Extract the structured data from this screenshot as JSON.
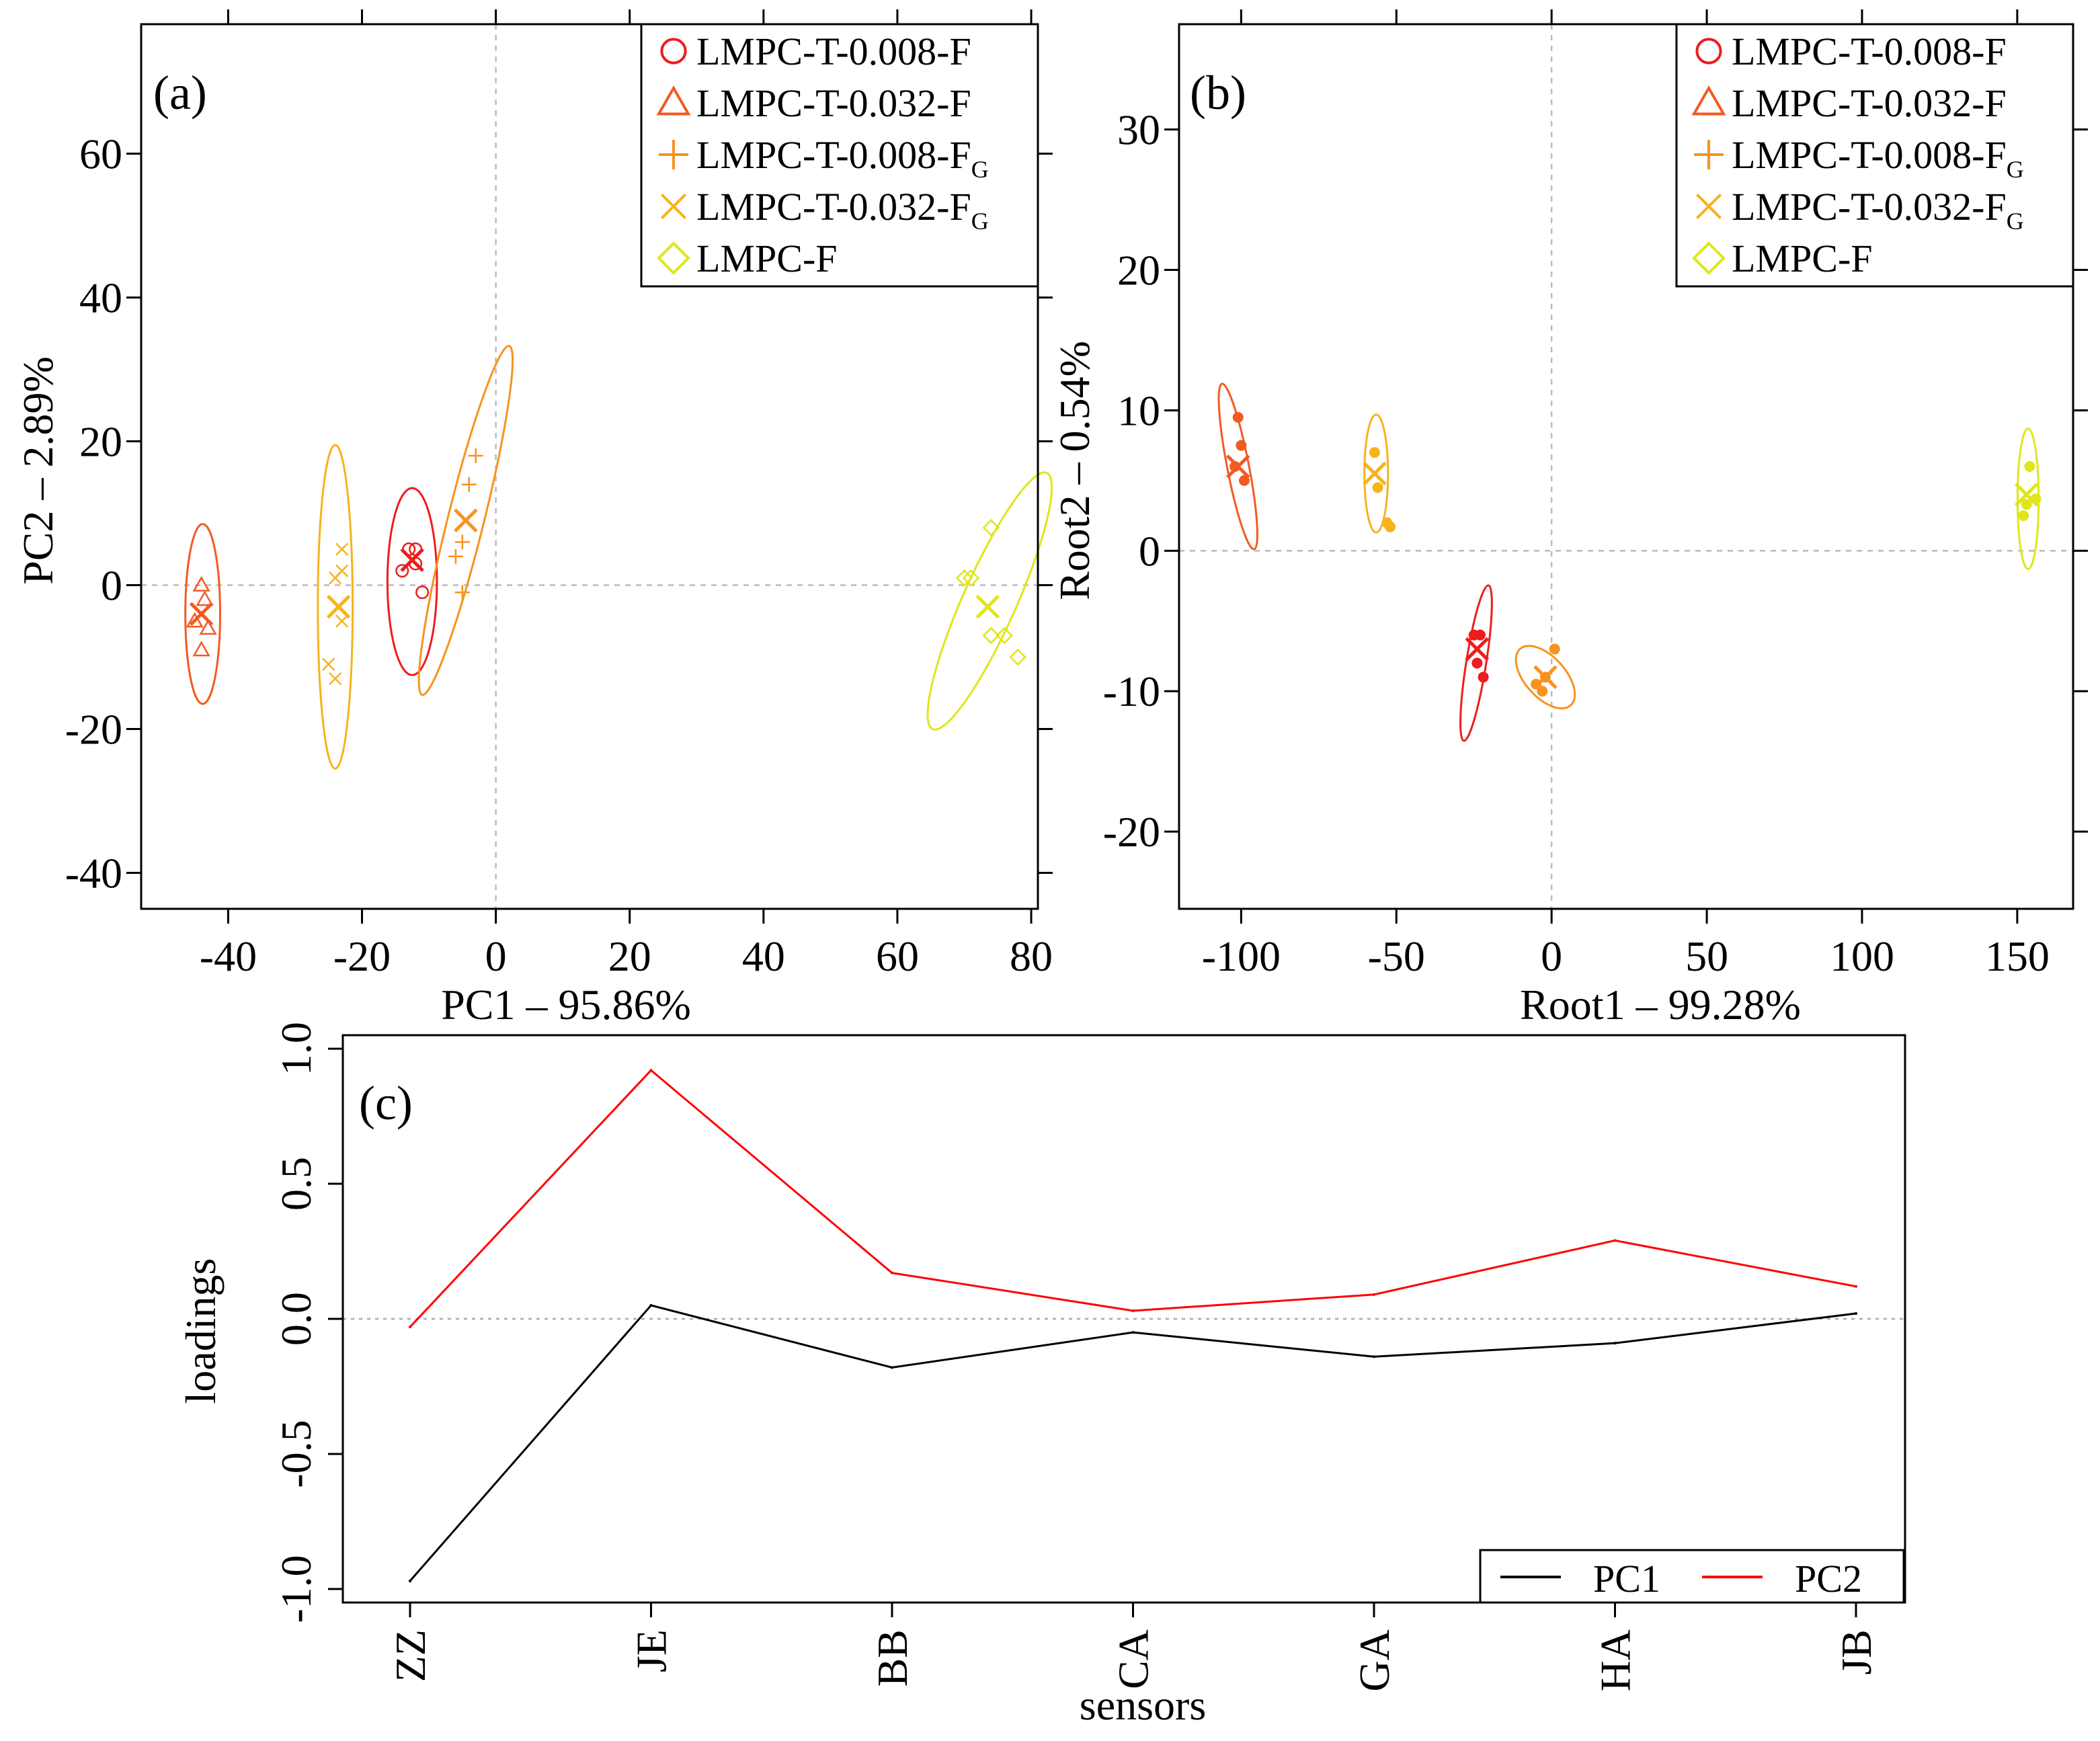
{
  "chart_data": [
    {
      "id": "a",
      "panel_label": "(a)",
      "type": "scatter",
      "xlabel": "PC1 – 95.86%",
      "ylabel": "PC2 – 2.89%",
      "xlim": [
        -53,
        81
      ],
      "ylim": [
        -45,
        78
      ],
      "xticks": [
        -40,
        -20,
        0,
        20,
        40,
        60,
        80
      ],
      "yticks": [
        -40,
        -20,
        0,
        20,
        40,
        60
      ],
      "xtick_labels": [
        "-40",
        "-20",
        "0",
        "20",
        "40",
        "60",
        "80"
      ],
      "ytick_labels": [
        "-40",
        "-20",
        "0",
        "20",
        "40",
        "60"
      ],
      "ref_lines": {
        "x": 0,
        "y": 0
      },
      "legend": {
        "position": "top-right"
      },
      "series": [
        {
          "name": "LMPC-T-0.008-F",
          "label_main": "LMPC-T-0.008-F",
          "label_sub": "",
          "marker": "circle",
          "color": "#ee1c1c",
          "points": [
            [
              -14,
              2
            ],
            [
              -13,
              5
            ],
            [
              -12,
              5
            ],
            [
              -12,
              3
            ],
            [
              -11,
              -1
            ]
          ],
          "centroid": [
            -12.5,
            3.5
          ],
          "ellipse": {
            "cx": -12.5,
            "cy": 0.5,
            "rx": 3.7,
            "ry": 13,
            "angle": 0
          }
        },
        {
          "name": "LMPC-T-0.032-F",
          "label_main": "LMPC-T-0.032-F",
          "label_sub": "",
          "marker": "triangle",
          "color": "#f25a22",
          "points": [
            [
              -44,
              0
            ],
            [
              -43.5,
              -2
            ],
            [
              -45,
              -5
            ],
            [
              -44,
              -9
            ],
            [
              -43,
              -6
            ]
          ],
          "centroid": [
            -44,
            -4
          ],
          "ellipse": {
            "cx": -43.8,
            "cy": -4,
            "rx": 2.6,
            "ry": 12.5,
            "angle": 0
          }
        },
        {
          "name": "LMPC-T-0.008-FG",
          "label_main": "LMPC-T-0.008-F",
          "label_sub": "G",
          "marker": "plus",
          "color": "#f7931e",
          "points": [
            [
              -3,
              18
            ],
            [
              -4,
              14
            ],
            [
              -5,
              6
            ],
            [
              -6,
              4
            ],
            [
              -5,
              -1
            ]
          ],
          "centroid": [
            -4.5,
            9
          ],
          "ellipse": {
            "cx": -4.5,
            "cy": 9,
            "rx": 2.7,
            "ry": 25,
            "angle": 14
          }
        },
        {
          "name": "LMPC-T-0.032-FG",
          "label_main": "LMPC-T-0.032-F",
          "label_sub": "G",
          "marker": "x",
          "color": "#f7b21c",
          "points": [
            [
              -23,
              5
            ],
            [
              -23,
              2
            ],
            [
              -24,
              1
            ],
            [
              -23,
              -5
            ],
            [
              -25,
              -11
            ],
            [
              -24,
              -13
            ]
          ],
          "centroid": [
            -23.5,
            -3
          ],
          "ellipse": {
            "cx": -24,
            "cy": -3,
            "rx": 2.6,
            "ry": 22.5,
            "angle": 0
          }
        },
        {
          "name": "LMPC-F",
          "label_main": "LMPC-F",
          "label_sub": "",
          "marker": "diamond",
          "color": "#e0e619",
          "points": [
            [
              71,
              1
            ],
            [
              74,
              8
            ],
            [
              74,
              -7
            ],
            [
              76,
              -7
            ],
            [
              78,
              -10
            ],
            [
              70,
              1
            ]
          ],
          "centroid": [
            73.5,
            -3
          ],
          "ellipse": {
            "cx": 73.8,
            "cy": -2.2,
            "rx": 4,
            "ry": 19.5,
            "angle": 24
          }
        }
      ]
    },
    {
      "id": "b",
      "panel_label": "(b)",
      "type": "scatter",
      "xlabel": "Root1 – 99.28%",
      "ylabel": "Root2 – 0.54%",
      "xlim": [
        -120,
        168
      ],
      "ylim": [
        -25.5,
        37.5
      ],
      "xticks": [
        -100,
        -50,
        0,
        50,
        100,
        150
      ],
      "yticks": [
        -20,
        -10,
        0,
        10,
        20,
        30
      ],
      "xtick_labels": [
        "-100",
        "-50",
        "0",
        "50",
        "100",
        "150"
      ],
      "ytick_labels": [
        "-20",
        "-10",
        "0",
        "10",
        "20",
        "30"
      ],
      "ref_lines": {
        "x": 0,
        "y": 0
      },
      "legend": {
        "position": "top-right"
      },
      "series": [
        {
          "name": "LMPC-T-0.008-F",
          "marker": "circle",
          "color": "#ee1c1c",
          "points": [
            [
              -25,
              -6
            ],
            [
              -24,
              -8
            ],
            [
              -23,
              -6
            ],
            [
              -22,
              -9
            ]
          ],
          "centroid": [
            -24,
            -7
          ],
          "ellipse": {
            "cx": -24.3,
            "cy": -8,
            "rx": 3.2,
            "ry": 5.6,
            "angle": 9
          }
        },
        {
          "name": "LMPC-T-0.032-F",
          "marker": "triangle",
          "color": "#f25a22",
          "points": [
            [
              -101,
              9.5
            ],
            [
              -100,
              7.5
            ],
            [
              -102,
              6
            ],
            [
              -99,
              5
            ]
          ],
          "centroid": [
            -101,
            6
          ],
          "ellipse": {
            "cx": -101,
            "cy": 6,
            "rx": 3.5,
            "ry": 6,
            "angle": -11
          }
        },
        {
          "name": "LMPC-T-0.008-FG",
          "marker": "plus",
          "color": "#f7931e",
          "points": [
            [
              1,
              -7
            ],
            [
              -2,
              -9
            ],
            [
              -5,
              -9.5
            ],
            [
              -3,
              -10
            ]
          ],
          "centroid": [
            -2,
            -9
          ],
          "ellipse": {
            "cx": -2,
            "cy": -9,
            "rx": 6.5,
            "ry": 2.7,
            "angle": -42
          }
        },
        {
          "name": "LMPC-T-0.032-FG",
          "marker": "x",
          "color": "#f7b21c",
          "points": [
            [
              -57,
              7
            ],
            [
              -56,
              4.5
            ],
            [
              -53,
              2
            ],
            [
              -52,
              1.7
            ]
          ],
          "centroid": [
            -57,
            5.5
          ],
          "ellipse": {
            "cx": -56.5,
            "cy": 5.5,
            "rx": 3.8,
            "ry": 4.2,
            "angle": 0
          }
        },
        {
          "name": "LMPC-F",
          "marker": "diamond",
          "color": "#e0e619",
          "points": [
            [
              154,
              6
            ],
            [
              152,
              2.5
            ],
            [
              156,
              3.7
            ],
            [
              153,
              3.3
            ]
          ],
          "centroid": [
            153,
            4
          ],
          "ellipse": {
            "cx": 153.5,
            "cy": 3.7,
            "rx": 3.4,
            "ry": 5,
            "angle": 0
          }
        }
      ]
    },
    {
      "id": "c",
      "panel_label": "(c)",
      "type": "line",
      "xlabel": "sensors",
      "ylabel": "loadings",
      "categories": [
        "ZZ",
        "JE",
        "BB",
        "CA",
        "GA",
        "HA",
        "JB"
      ],
      "ylim": [
        -1.05,
        1.05
      ],
      "yticks": [
        -1.0,
        -0.5,
        0.0,
        0.5,
        1.0
      ],
      "ytick_labels": [
        "-1.0",
        "-0.5",
        "0.0",
        "0.5",
        "1.0"
      ],
      "ref_line_y": 0,
      "legend": {
        "position": "bottom-right"
      },
      "series": [
        {
          "name": "PC1",
          "color": "#000000",
          "values": [
            -0.97,
            0.05,
            -0.18,
            -0.05,
            -0.14,
            -0.09,
            0.02
          ]
        },
        {
          "name": "PC2",
          "color": "#ff0000",
          "values": [
            -0.03,
            0.92,
            0.17,
            0.03,
            0.09,
            0.29,
            0.12
          ]
        }
      ]
    }
  ]
}
